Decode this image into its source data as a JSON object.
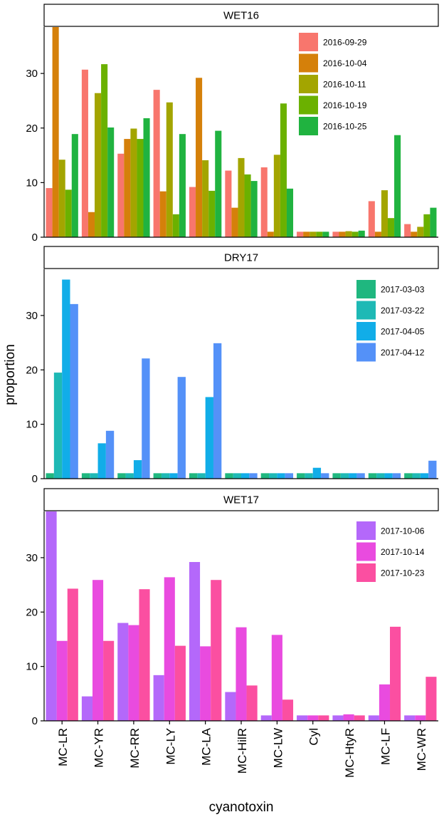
{
  "chart_data": {
    "type": "bar",
    "xlabel": "cyanotoxin",
    "ylabel": "proportion",
    "categories": [
      "MC-LR",
      "MC-YR",
      "MC-RR",
      "MC-LY",
      "MC-LA",
      "MC-HilR",
      "MC-LW",
      "Cyl",
      "MC-HtyR",
      "MC-LF",
      "MC-WR"
    ],
    "y_ticks": [
      0,
      10,
      20,
      30
    ],
    "panels": [
      {
        "title": "WET16",
        "ylim": [
          0,
          38.5
        ],
        "legend_position": "top-right",
        "series": [
          {
            "name": "2016-09-29",
            "color": "#F8766D",
            "values": [
              9.0,
              30.7,
              15.3,
              27.0,
              9.2,
              12.2,
              12.8,
              1.0,
              1.0,
              6.6,
              2.4
            ]
          },
          {
            "name": "2016-10-04",
            "color": "#D5800A",
            "values": [
              38.5,
              4.6,
              18.0,
              8.4,
              29.2,
              5.4,
              1.0,
              1.0,
              1.0,
              1.0,
              1.0
            ]
          },
          {
            "name": "2016-10-11",
            "color": "#A3A500",
            "values": [
              14.2,
              26.4,
              19.9,
              24.7,
              14.1,
              14.5,
              15.1,
              1.0,
              1.1,
              8.6,
              1.9
            ]
          },
          {
            "name": "2016-10-19",
            "color": "#6BB100",
            "values": [
              8.7,
              31.7,
              18.0,
              4.2,
              8.5,
              11.5,
              24.5,
              1.0,
              1.0,
              3.5,
              4.2
            ]
          },
          {
            "name": "2016-10-25",
            "color": "#20B340",
            "values": [
              18.9,
              20.1,
              21.8,
              18.9,
              19.5,
              10.3,
              8.9,
              1.0,
              1.2,
              18.7,
              5.4
            ]
          }
        ]
      },
      {
        "title": "DRY17",
        "ylim": [
          0,
          38.5
        ],
        "legend_position": "top-right",
        "series": [
          {
            "name": "2017-03-03",
            "color": "#1FB77F",
            "values": [
              1.0,
              1.0,
              1.0,
              1.0,
              1.0,
              1.0,
              1.0,
              1.0,
              1.0,
              1.0,
              1.0
            ]
          },
          {
            "name": "2017-03-22",
            "color": "#1EB9B5",
            "values": [
              19.5,
              1.0,
              1.0,
              1.0,
              1.0,
              1.0,
              1.0,
              1.0,
              1.0,
              1.0,
              1.0
            ]
          },
          {
            "name": "2017-04-05",
            "color": "#11ADE8",
            "values": [
              36.6,
              6.5,
              3.4,
              1.0,
              15.0,
              1.0,
              1.0,
              2.0,
              1.0,
              1.0,
              1.0
            ]
          },
          {
            "name": "2017-04-12",
            "color": "#5491F8",
            "values": [
              32.1,
              8.8,
              22.1,
              18.7,
              24.9,
              1.0,
              1.0,
              1.0,
              1.0,
              1.0,
              3.3
            ]
          }
        ]
      },
      {
        "title": "WET17",
        "ylim": [
          0,
          38.5
        ],
        "legend_position": "top-right",
        "series": [
          {
            "name": "2017-10-06",
            "color": "#B468FA",
            "values": [
              38.5,
              4.5,
              18.0,
              8.4,
              29.2,
              5.3,
              1.0,
              1.0,
              1.0,
              1.0,
              1.0
            ]
          },
          {
            "name": "2017-10-14",
            "color": "#E94BDF",
            "values": [
              14.7,
              25.9,
              17.6,
              26.4,
              13.7,
              17.2,
              15.8,
              1.0,
              1.2,
              6.7,
              1.0
            ]
          },
          {
            "name": "2017-10-23",
            "color": "#FB4FA1",
            "values": [
              24.3,
              14.7,
              24.2,
              13.8,
              25.9,
              6.5,
              3.9,
              1.0,
              1.0,
              17.3,
              8.1
            ]
          }
        ]
      }
    ]
  }
}
